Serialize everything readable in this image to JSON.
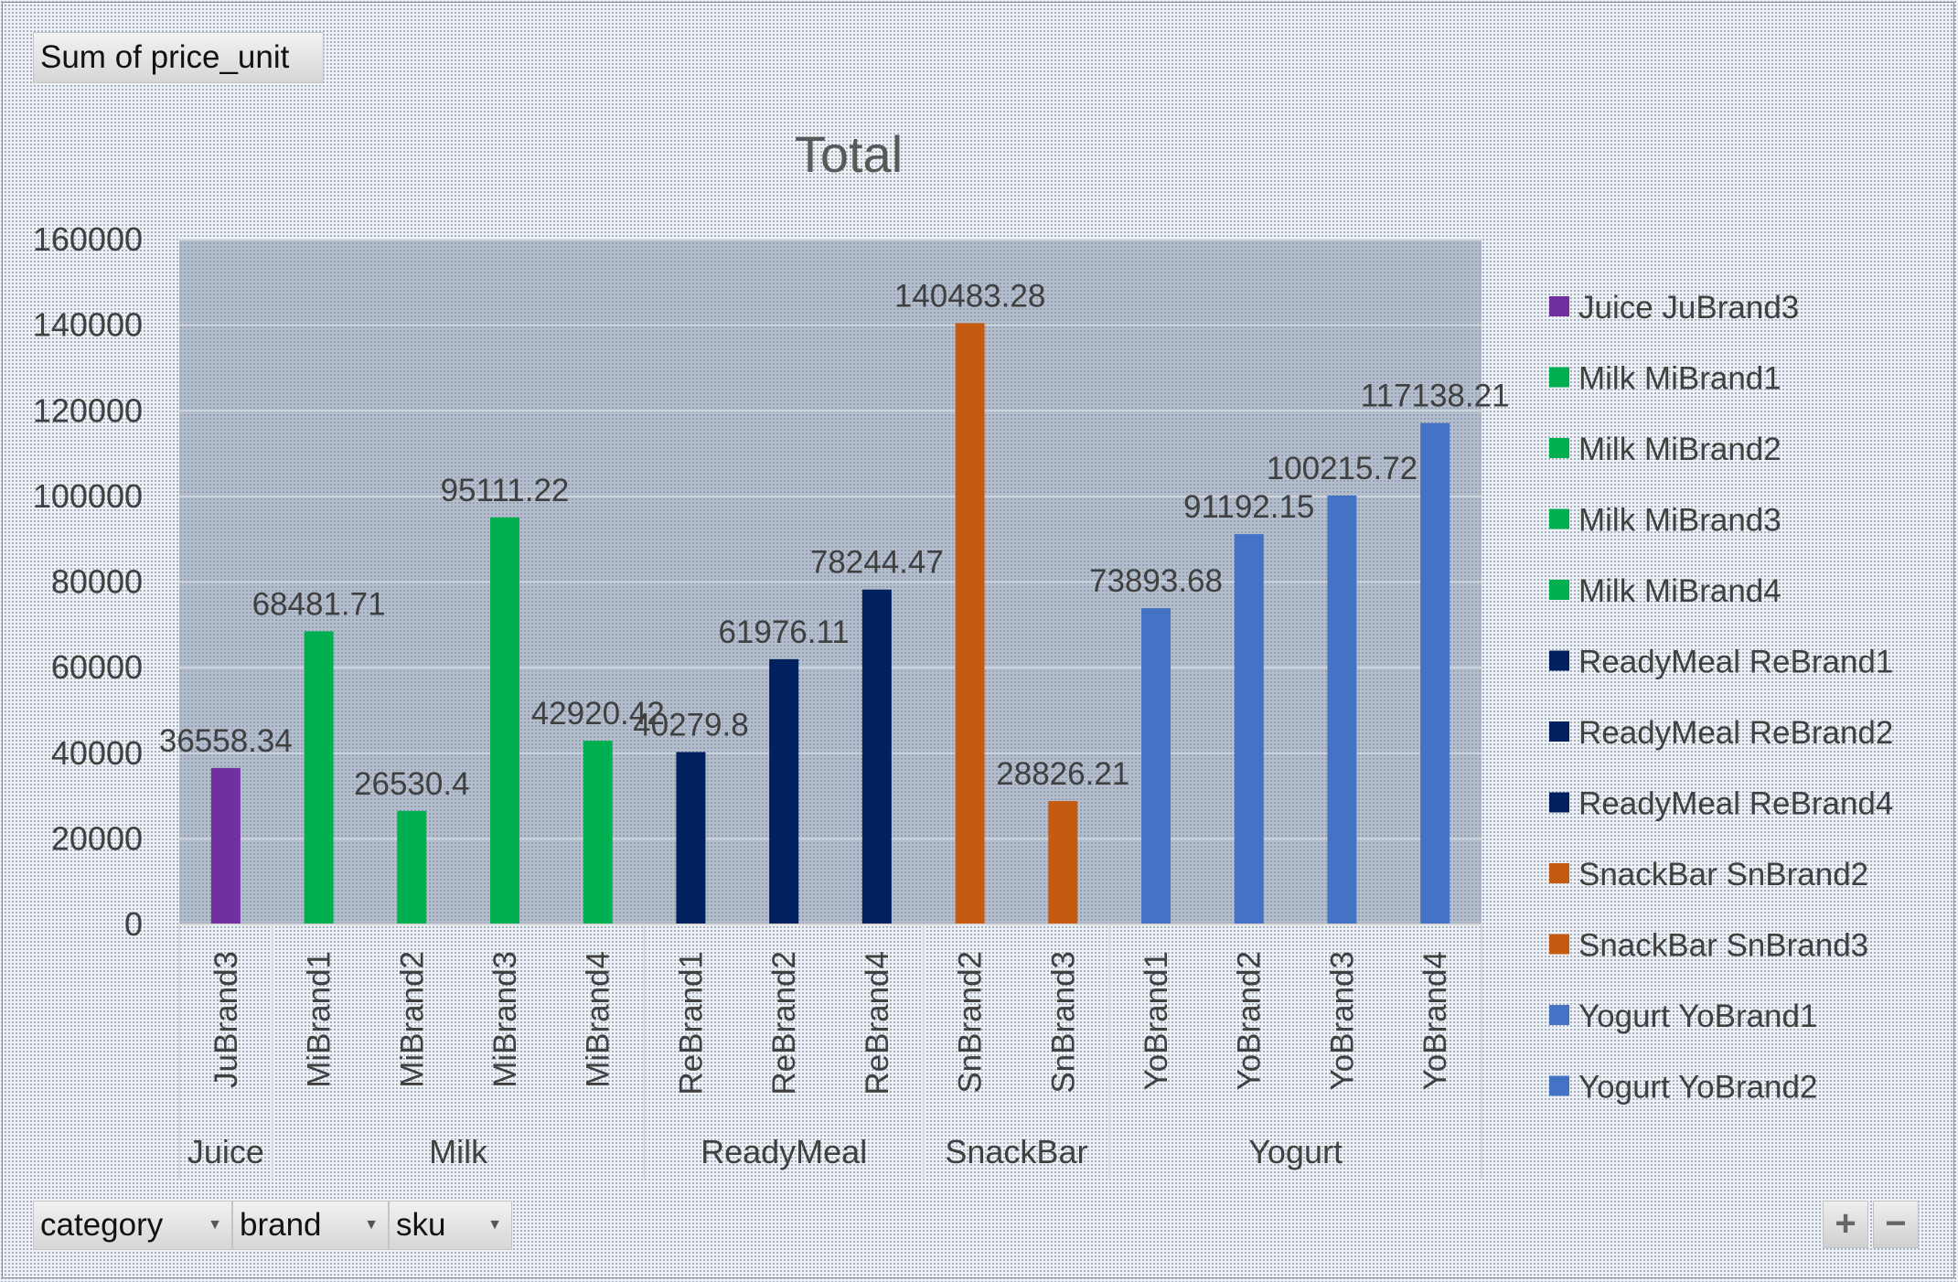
{
  "value_field": "Sum of price_unit",
  "filters": [
    {
      "label": "category",
      "icon": "dropdown-arrow-icon"
    },
    {
      "label": "brand",
      "icon": "dropdown-arrow-icon"
    },
    {
      "label": "sku",
      "icon": "dropdown-arrow-icon"
    }
  ],
  "zoom": {
    "expand": "+",
    "collapse": "−"
  },
  "colors": {
    "Juice": "#7030a0",
    "Milk": "#00b050",
    "ReadyMeal": "#002060",
    "SnackBar": "#c55a11",
    "Yogurt": "#4472c4",
    "plot_area": "#8593ab",
    "gridline": "#d0d6df",
    "text": "#404040"
  },
  "chart_data": {
    "type": "bar",
    "title": "Total",
    "ylim": [
      0,
      160000
    ],
    "yticks": [
      "0",
      "20000",
      "40000",
      "60000",
      "80000",
      "100000",
      "120000",
      "140000",
      "160000"
    ],
    "grid": true,
    "legend_position": "right",
    "groups": [
      {
        "name": "Juice",
        "items": [
          {
            "brand": "JuBrand3",
            "value": 36558.34,
            "label": "36558.34"
          }
        ]
      },
      {
        "name": "Milk",
        "items": [
          {
            "brand": "MiBrand1",
            "value": 68481.71,
            "label": "68481.71"
          },
          {
            "brand": "MiBrand2",
            "value": 26530.4,
            "label": "26530.4"
          },
          {
            "brand": "MiBrand3",
            "value": 95111.22,
            "label": "95111.22"
          },
          {
            "brand": "MiBrand4",
            "value": 42920.42,
            "label": "42920.42"
          }
        ]
      },
      {
        "name": "ReadyMeal",
        "items": [
          {
            "brand": "ReBrand1",
            "value": 40279.8,
            "label": "40279.8"
          },
          {
            "brand": "ReBrand2",
            "value": 61976.11,
            "label": "61976.11"
          },
          {
            "brand": "ReBrand4",
            "value": 78244.47,
            "label": "78244.47"
          }
        ]
      },
      {
        "name": "SnackBar",
        "items": [
          {
            "brand": "SnBrand2",
            "value": 140483.28,
            "label": "140483.28"
          },
          {
            "brand": "SnBrand3",
            "value": 28826.21,
            "label": "28826.21"
          }
        ]
      },
      {
        "name": "Yogurt",
        "items": [
          {
            "brand": "YoBrand1",
            "value": 73893.68,
            "label": "73893.68"
          },
          {
            "brand": "YoBrand2",
            "value": 91192.15,
            "label": "91192.15"
          },
          {
            "brand": "YoBrand3",
            "value": 100215.72,
            "label": "100215.72"
          },
          {
            "brand": "YoBrand4",
            "value": 117138.21,
            "label": "117138.21"
          }
        ]
      }
    ],
    "legend": [
      {
        "label": "Juice JuBrand3",
        "group": "Juice"
      },
      {
        "label": "Milk MiBrand1",
        "group": "Milk"
      },
      {
        "label": "Milk MiBrand2",
        "group": "Milk"
      },
      {
        "label": "Milk MiBrand3",
        "group": "Milk"
      },
      {
        "label": "Milk MiBrand4",
        "group": "Milk"
      },
      {
        "label": "ReadyMeal ReBrand1",
        "group": "ReadyMeal"
      },
      {
        "label": "ReadyMeal ReBrand2",
        "group": "ReadyMeal"
      },
      {
        "label": "ReadyMeal ReBrand4",
        "group": "ReadyMeal"
      },
      {
        "label": "SnackBar SnBrand2",
        "group": "SnackBar"
      },
      {
        "label": "SnackBar SnBrand3",
        "group": "SnackBar"
      },
      {
        "label": "Yogurt YoBrand1",
        "group": "Yogurt"
      },
      {
        "label": "Yogurt YoBrand2",
        "group": "Yogurt"
      }
    ]
  }
}
